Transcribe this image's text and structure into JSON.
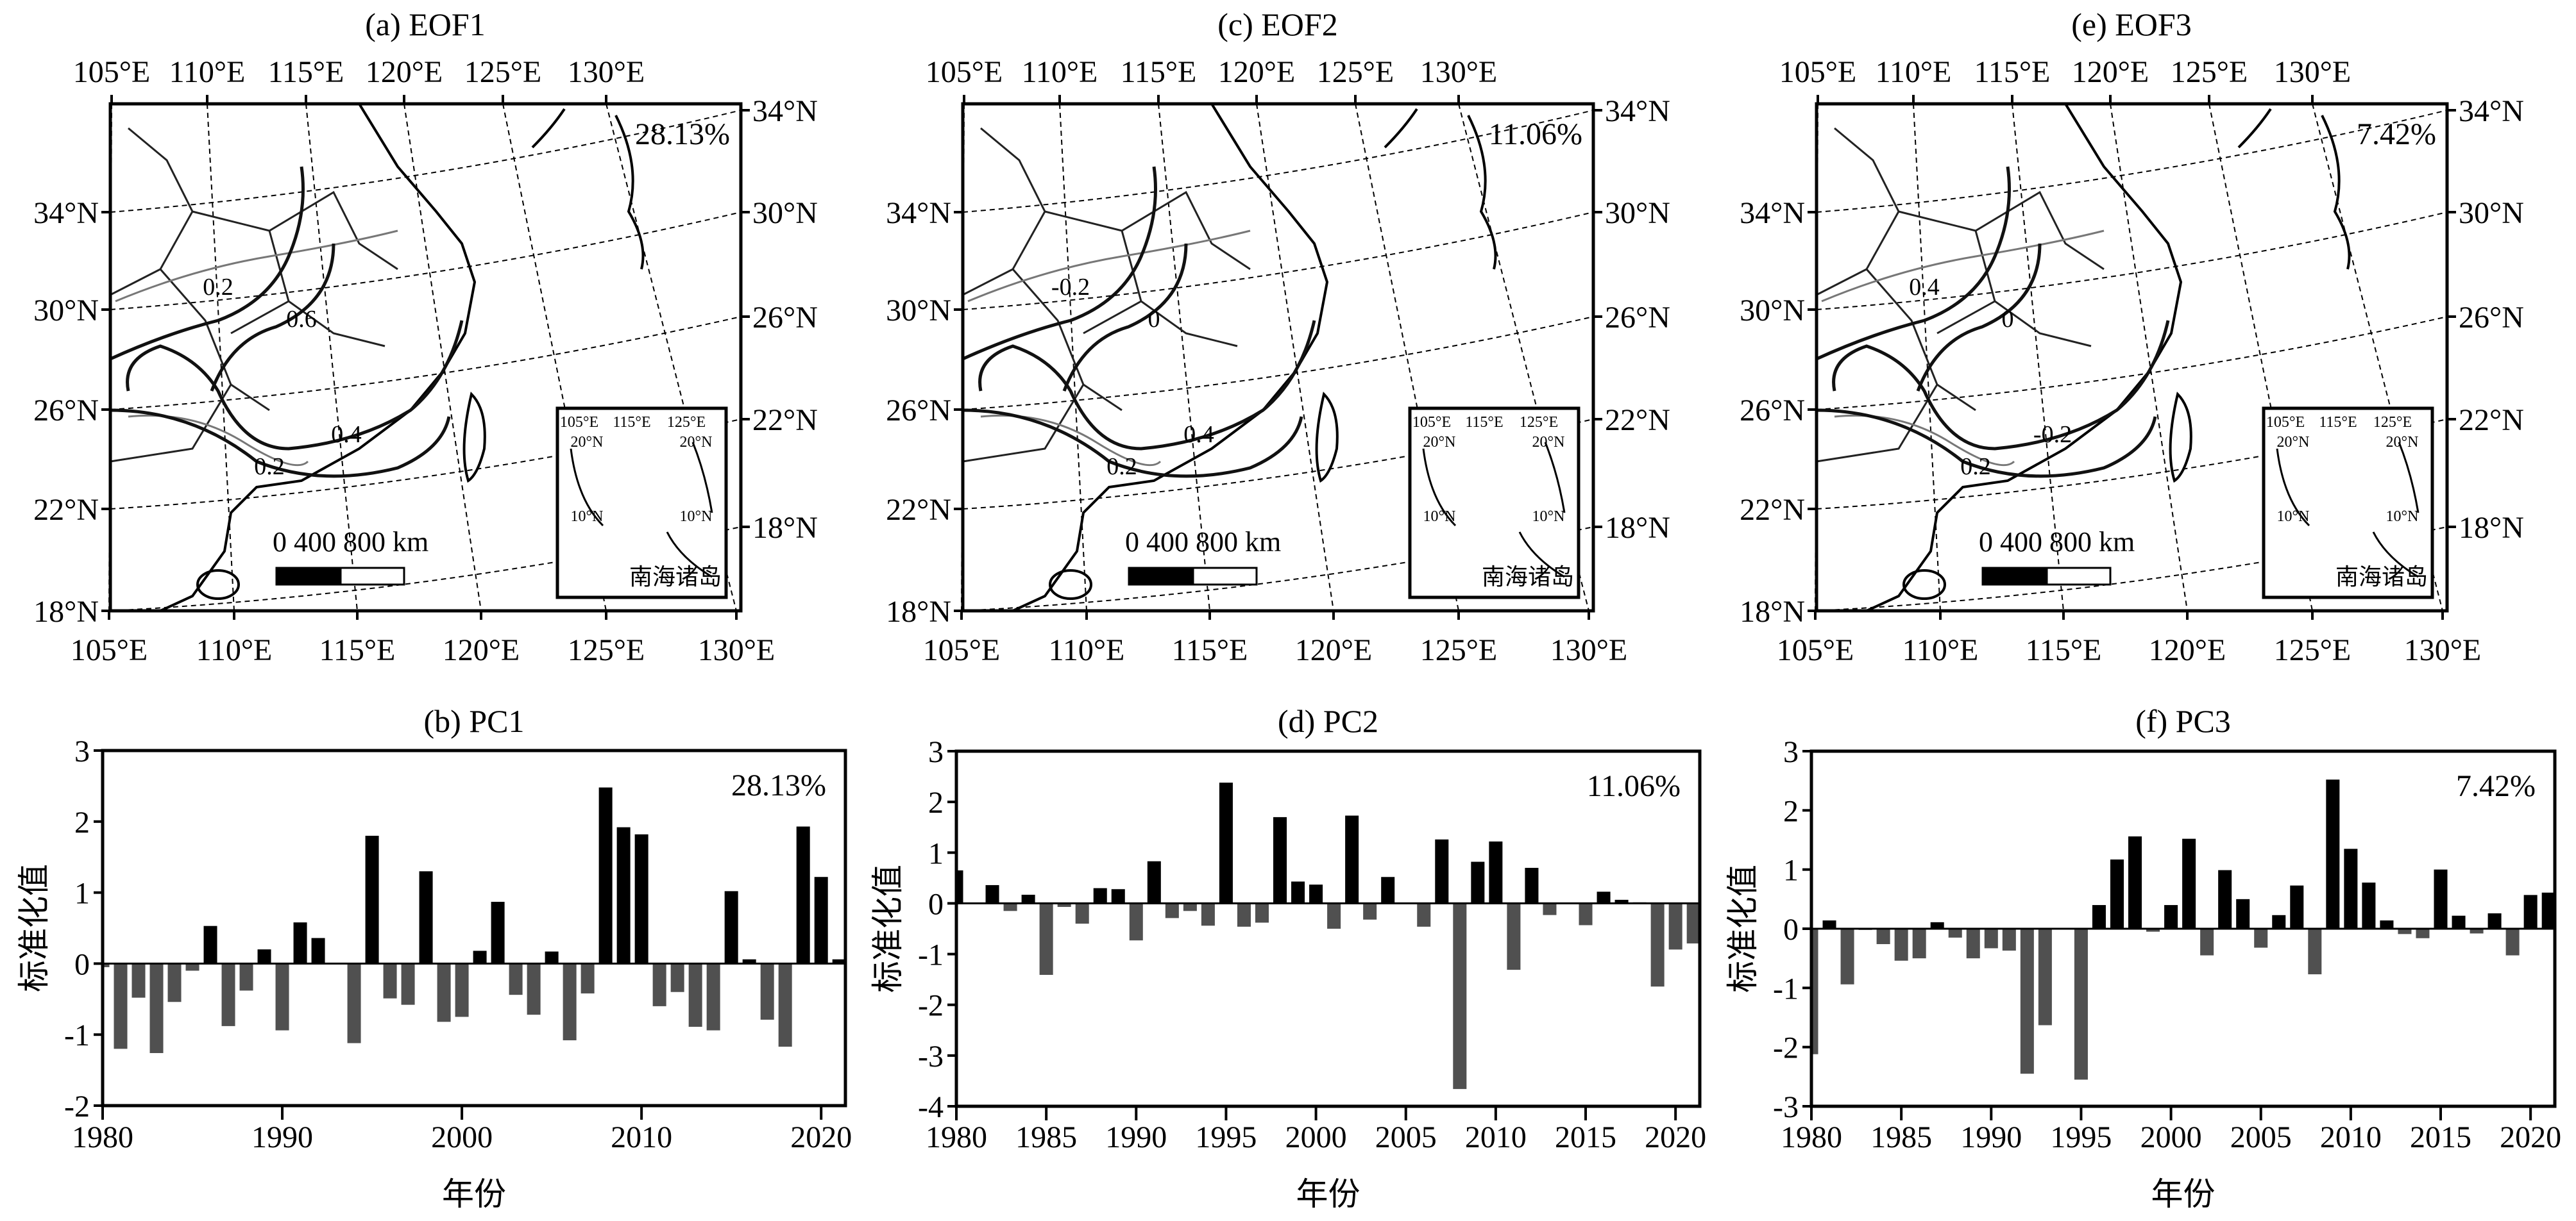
{
  "maps": [
    {
      "title": "(a) EOF1",
      "percent": "28.13%",
      "contour_labels": [
        "0.2",
        "0.6",
        "0.4",
        "0.2"
      ]
    },
    {
      "title": "(c) EOF2",
      "percent": "11.06%",
      "contour_labels": [
        "-0.2",
        "0",
        "0.4",
        "0.2"
      ]
    },
    {
      "title": "(e) EOF3",
      "percent": "7.42%",
      "contour_labels": [
        "0.4",
        "0",
        "-0.2",
        "0.2"
      ]
    }
  ],
  "map_common": {
    "top_lon_labels": [
      "105°E",
      "110°E",
      "115°E",
      "120°E",
      "125°E",
      "130°E"
    ],
    "bottom_lon_labels": [
      "105°E",
      "110°E",
      "115°E",
      "120°E",
      "125°E",
      "130°E"
    ],
    "left_lat_labels": [
      "34°N",
      "30°N",
      "26°N",
      "22°N",
      "18°N"
    ],
    "right_lat_labels": [
      "34°N",
      "30°N",
      "26°N",
      "22°N",
      "18°N"
    ],
    "scale_bar_label": "0   400 800 km",
    "inset_lon_labels": [
      "105°E",
      "115°E",
      "125°E"
    ],
    "inset_lat_labels": [
      "20°N",
      "20°N",
      "10°N",
      "10°N"
    ],
    "inset_title": "南海诸岛"
  },
  "colors": {
    "positive": "#000000",
    "negative": "#505050"
  },
  "chart_data": [
    {
      "type": "bar",
      "title": "(b) PC1",
      "annotation": "28.13%",
      "xlabel": "年份",
      "ylabel": "标准化值",
      "ylim": [
        -2,
        3
      ],
      "yticks": [
        "-2",
        "-1",
        "0",
        "1",
        "2",
        "3"
      ],
      "xticks": [
        "1980",
        "1990",
        "2000",
        "2010",
        "2020"
      ],
      "x": [
        1980,
        1981,
        1982,
        1983,
        1984,
        1985,
        1986,
        1987,
        1988,
        1989,
        1990,
        1991,
        1992,
        1993,
        1994,
        1995,
        1996,
        1997,
        1998,
        1999,
        2000,
        2001,
        2002,
        2003,
        2004,
        2005,
        2006,
        2007,
        2008,
        2009,
        2010,
        2011,
        2012,
        2013,
        2014,
        2015,
        2016,
        2017,
        2018,
        2019,
        2020,
        2021
      ],
      "values": [
        -0.05,
        -1.2,
        -0.48,
        -1.26,
        -0.54,
        -0.1,
        0.53,
        -0.88,
        -0.38,
        0.2,
        -0.94,
        0.58,
        0.36,
        -0.01,
        -1.12,
        1.8,
        -0.49,
        -0.58,
        1.3,
        -0.82,
        -0.75,
        0.18,
        0.87,
        -0.44,
        -0.72,
        0.17,
        -1.08,
        -0.42,
        2.48,
        1.92,
        1.82,
        -0.6,
        -0.4,
        -0.89,
        -0.94,
        1.02,
        0.06,
        -0.79,
        -1.17,
        1.93,
        1.22,
        0.06
      ]
    },
    {
      "type": "bar",
      "title": "(d) PC2",
      "annotation": "11.06%",
      "xlabel": "年份",
      "ylabel": "标准化值",
      "ylim": [
        -4,
        3
      ],
      "yticks": [
        "-4",
        "-3",
        "-2",
        "-1",
        "0",
        "1",
        "2",
        "3"
      ],
      "xticks": [
        "1980",
        "1985",
        "1990",
        "1995",
        "2000",
        "2005",
        "2010",
        "2015",
        "2020"
      ],
      "x": [
        1980,
        1981,
        1982,
        1983,
        1984,
        1985,
        1986,
        1987,
        1988,
        1989,
        1990,
        1991,
        1992,
        1993,
        1994,
        1995,
        1996,
        1997,
        1998,
        1999,
        2000,
        2001,
        2002,
        2003,
        2004,
        2005,
        2006,
        2007,
        2008,
        2009,
        2010,
        2011,
        2012,
        2013,
        2014,
        2015,
        2016,
        2017,
        2018,
        2019,
        2020,
        2021
      ],
      "values": [
        0.65,
        0,
        0.36,
        -0.15,
        0.17,
        -1.41,
        -0.07,
        -0.4,
        0.3,
        0.28,
        -0.73,
        0.83,
        -0.29,
        -0.15,
        -0.44,
        2.38,
        -0.46,
        -0.38,
        1.7,
        0.43,
        0.37,
        -0.5,
        1.73,
        -0.32,
        0.52,
        0,
        -0.46,
        1.26,
        -3.66,
        0.82,
        1.22,
        -1.31,
        0.7,
        -0.23,
        0,
        -0.43,
        0.23,
        0.07,
        0.02,
        -1.64,
        -0.91,
        -0.79
      ]
    },
    {
      "type": "bar",
      "title": "(f) PC3",
      "annotation": "7.42%",
      "xlabel": "年份",
      "ylabel": "标准化值",
      "ylim": [
        -3,
        3
      ],
      "yticks": [
        "-3",
        "-2",
        "-1",
        "0",
        "1",
        "2",
        "3"
      ],
      "xticks": [
        "1980",
        "1985",
        "1990",
        "1995",
        "2000",
        "2005",
        "2010",
        "2015",
        "2020"
      ],
      "x": [
        1980,
        1981,
        1982,
        1983,
        1984,
        1985,
        1986,
        1987,
        1988,
        1989,
        1990,
        1991,
        1992,
        1993,
        1994,
        1995,
        1996,
        1997,
        1998,
        1999,
        2000,
        2001,
        2002,
        2003,
        2004,
        2005,
        2006,
        2007,
        2008,
        2009,
        2010,
        2011,
        2012,
        2013,
        2014,
        2015,
        2016,
        2017,
        2018,
        2019,
        2020,
        2021
      ],
      "values": [
        -2.12,
        0.14,
        -0.94,
        -0.02,
        -0.26,
        -0.54,
        -0.5,
        0.11,
        -0.15,
        -0.5,
        -0.33,
        -0.37,
        -2.45,
        -1.63,
        0,
        -2.55,
        0.4,
        1.17,
        1.56,
        -0.05,
        0.4,
        1.52,
        -0.45,
        0.99,
        0.5,
        -0.32,
        0.23,
        0.73,
        -0.77,
        2.52,
        1.35,
        0.78,
        0.14,
        -0.09,
        -0.16,
        1.0,
        0.22,
        -0.08,
        0.26,
        -0.45,
        0.57,
        0.61
      ]
    }
  ]
}
